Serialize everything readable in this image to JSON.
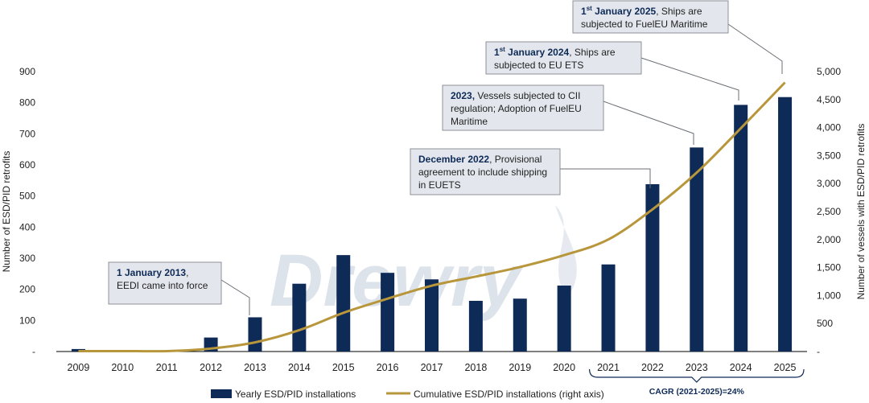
{
  "chart_data": {
    "type": "bar+line",
    "title": "",
    "categories": [
      "2009",
      "2010",
      "2011",
      "2012",
      "2013",
      "2014",
      "2015",
      "2016",
      "2017",
      "2018",
      "2019",
      "2020",
      "2021",
      "2022",
      "2023",
      "2024",
      "2025"
    ],
    "series": [
      {
        "name": "Yearly ESD/PID installations",
        "type": "bar",
        "axis": "left",
        "values": [
          8,
          0,
          0,
          45,
          110,
          218,
          310,
          253,
          232,
          163,
          170,
          212,
          280,
          538,
          656,
          793,
          818
        ]
      },
      {
        "name": "Cumulative ESD/PID installations (right axis)",
        "type": "line",
        "axis": "right",
        "values": [
          8,
          8,
          8,
          53,
          163,
          381,
          691,
          944,
          1176,
          1339,
          1509,
          1721,
          2001,
          2539,
          3195,
          3988,
          4806
        ]
      }
    ],
    "ylabel": "Number of ESD/PID retrofits",
    "y2label": "Number of vessels with ESD/PID retrofits",
    "ylim": [
      0,
      900
    ],
    "y2lim": [
      0,
      5000
    ],
    "yticks": [
      "900",
      "800",
      "700",
      "600",
      "500",
      "400",
      "300",
      "200",
      "100",
      "-"
    ],
    "y2ticks": [
      "5,000",
      "4,500",
      "4,000",
      "3,500",
      "3,000",
      "2,500",
      "2,000",
      "1,500",
      "1,000",
      "500",
      "-"
    ],
    "legend": {
      "bar_label": "Yearly ESD/PID installations",
      "line_label": "Cumulative ESD/PID installations (right axis)",
      "placement": "bottom"
    },
    "cagr_label": "CAGR (2021-2025)=24%",
    "watermark": "Drewry",
    "colors": {
      "bar": "#0e2a57",
      "line": "#b8963c",
      "box_fill": "#e3e7ed",
      "box_border": "#8c9097",
      "text": "#1f1f1f",
      "bold_text": "#0e2a57"
    },
    "annotations": [
      {
        "target_year": "2013",
        "bold": "1 January 2013",
        "rest": ",",
        "line2": "EEDI came into force"
      },
      {
        "target_year": "2022",
        "bold": "December 2022",
        "rest": ", Provisional",
        "line2": "agreement to include shipping",
        "line3": "in EUETS"
      },
      {
        "target_year": "2023",
        "bold": "2023,",
        "rest": " Vessels subjected to CII",
        "line2": "regulation; Adoption of FuelEU",
        "line3": "Maritime"
      },
      {
        "target_year": "2024",
        "bold": "1",
        "sup": "st",
        "bold2": " January 2024",
        "rest": ", Ships are",
        "line2": "subjected to EU ETS"
      },
      {
        "target_year": "2025",
        "bold": "1",
        "sup": "st",
        "bold2": " January 2025",
        "rest": ", Ships are",
        "line2": "subjected to FuelEU Maritime"
      }
    ]
  }
}
